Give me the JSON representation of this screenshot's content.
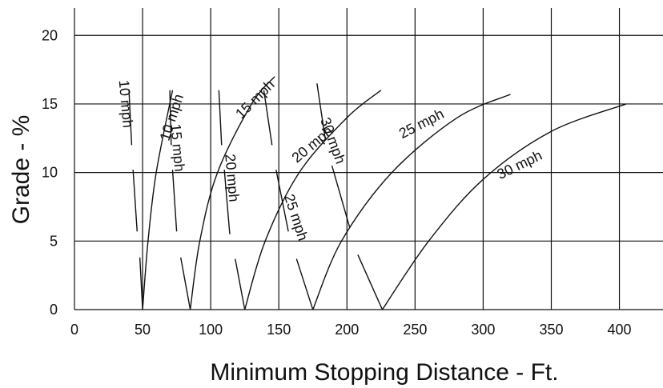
{
  "chart_data": {
    "type": "line",
    "title": "",
    "xlabel": "Minimum Stopping Distance - Ft.",
    "ylabel": "Grade - %",
    "xlim": [
      0,
      432
    ],
    "ylim": [
      0,
      22
    ],
    "x_ticks": [
      "0",
      "50",
      "100",
      "150",
      "200",
      "250",
      "300",
      "350",
      "400"
    ],
    "y_ticks": [
      "0",
      "5",
      "10",
      "15",
      "20"
    ],
    "grid": true,
    "upgrade_series": [
      {
        "name": "10 mph",
        "points": [
          [
            50,
            0
          ],
          [
            54,
            5
          ],
          [
            60,
            10
          ],
          [
            72,
            16
          ]
        ]
      },
      {
        "name": "15 mph",
        "points": [
          [
            85,
            0
          ],
          [
            92,
            5
          ],
          [
            105,
            10
          ],
          [
            130,
            15
          ],
          [
            147,
            17
          ]
        ]
      },
      {
        "name": "20 mph",
        "points": [
          [
            125,
            0
          ],
          [
            140,
            5
          ],
          [
            165,
            10
          ],
          [
            200,
            14
          ],
          [
            225,
            16
          ]
        ]
      },
      {
        "name": "25 mph",
        "points": [
          [
            175,
            0
          ],
          [
            196,
            5
          ],
          [
            233,
            10
          ],
          [
            281,
            14
          ],
          [
            320,
            15.7
          ]
        ]
      },
      {
        "name": "30 mph",
        "points": [
          [
            226,
            0
          ],
          [
            260,
            5
          ],
          [
            300,
            9.5
          ],
          [
            350,
            13
          ],
          [
            405,
            15
          ]
        ]
      }
    ],
    "downgrade_series": [
      {
        "name": "10 mph",
        "points": [
          [
            50,
            0
          ],
          [
            48,
            3.8
          ]
        ]
      },
      {
        "name": "10 mph",
        "points": [
          [
            46,
            5.7
          ],
          [
            43,
            10.2
          ]
        ]
      },
      {
        "name": "10 mph",
        "points": [
          [
            42,
            12
          ],
          [
            40,
            16
          ]
        ]
      },
      {
        "name": "15 mph",
        "points": [
          [
            85,
            0
          ],
          [
            78,
            3.8
          ]
        ]
      },
      {
        "name": "15 mph",
        "points": [
          [
            75,
            5.7
          ],
          [
            72,
            10.2
          ]
        ]
      },
      {
        "name": "15 mph",
        "points": [
          [
            71,
            12
          ],
          [
            70,
            16
          ]
        ]
      },
      {
        "name": "20 mph",
        "points": [
          [
            125,
            0
          ],
          [
            118,
            3.7
          ]
        ]
      },
      {
        "name": "20 mph",
        "points": [
          [
            114,
            5.5
          ],
          [
            110,
            10.2
          ]
        ]
      },
      {
        "name": "20 mph",
        "points": [
          [
            108,
            12
          ],
          [
            106,
            16
          ]
        ]
      },
      {
        "name": "25 mph",
        "points": [
          [
            175,
            0
          ],
          [
            163,
            3.7
          ]
        ]
      },
      {
        "name": "25 mph",
        "points": [
          [
            157,
            5.7
          ],
          [
            148,
            10.2
          ]
        ]
      },
      {
        "name": "25 mph",
        "points": [
          [
            145,
            12
          ],
          [
            139,
            16
          ]
        ]
      },
      {
        "name": "30 mph",
        "points": [
          [
            226,
            0
          ],
          [
            208,
            4
          ]
        ]
      },
      {
        "name": "30 mph",
        "points": [
          [
            202,
            6
          ],
          [
            189,
            10.5
          ]
        ]
      },
      {
        "name": "30 mph",
        "points": [
          [
            184,
            12.5
          ],
          [
            178,
            16.5
          ]
        ]
      }
    ],
    "curve_labels": [
      {
        "text": "10 mph",
        "x": 72,
        "y": 14,
        "angle": -72
      },
      {
        "text": "15 mph",
        "x": 133,
        "y": 15.3,
        "angle": -45
      },
      {
        "text": "20 mph",
        "x": 175,
        "y": 12,
        "angle": -40
      },
      {
        "text": "25 mph",
        "x": 255,
        "y": 13.5,
        "angle": -27
      },
      {
        "text": "30 mph",
        "x": 327,
        "y": 10.5,
        "angle": -26
      },
      {
        "text": "10 mph",
        "x": 37,
        "y": 15,
        "angle": 85
      },
      {
        "text": "15 mph",
        "x": 75,
        "y": 11.8,
        "angle": 85
      },
      {
        "text": "20 mph",
        "x": 115,
        "y": 9.6,
        "angle": 85
      },
      {
        "text": "25 mph",
        "x": 162,
        "y": 6.7,
        "angle": 72
      },
      {
        "text": "30 mph",
        "x": 189,
        "y": 12.3,
        "angle": 70
      }
    ]
  }
}
